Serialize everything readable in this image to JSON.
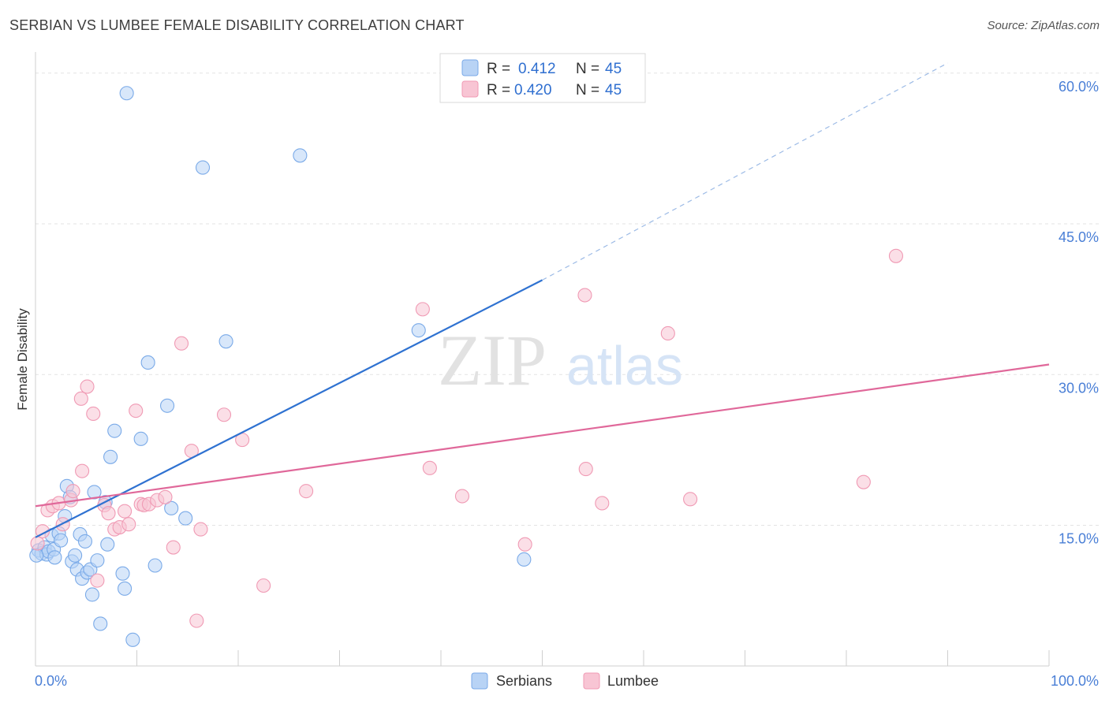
{
  "title": "SERBIAN VS LUMBEE FEMALE DISABILITY CORRELATION CHART",
  "source": "Source: ZipAtlas.com",
  "watermark": {
    "zip": "ZIP",
    "atlas": "atlas"
  },
  "legend_top": [
    {
      "r_label": "R =",
      "r_value": "0.412",
      "n_label": "N =",
      "n_value": "45"
    },
    {
      "r_label": "R =",
      "r_value": "0.420",
      "n_label": "N =",
      "n_value": "45"
    }
  ],
  "colors": {
    "serbians": "#7aaae8",
    "serbians_fill": "#b8d3f5",
    "serbians_line": "#2f72d1",
    "lumbee": "#f09ab4",
    "lumbee_fill": "#f8c5d4",
    "lumbee_line": "#e0689a"
  },
  "chart_data": {
    "type": "scatter",
    "xlabel": "",
    "ylabel": "Female Disability",
    "xlim": [
      0,
      100
    ],
    "ylim": [
      1,
      61
    ],
    "x_tick_labels": [
      "0.0%",
      "100.0%"
    ],
    "y_ticks": [
      15,
      30,
      45,
      60
    ],
    "y_tick_labels": [
      "15.0%",
      "30.0%",
      "45.0%",
      "60.0%"
    ],
    "legend_position": "top-center",
    "series": [
      {
        "name": "Serbians",
        "points": [
          [
            0.3,
            12.5
          ],
          [
            0.6,
            12.2
          ],
          [
            0.9,
            12.8
          ],
          [
            1.1,
            12.1
          ],
          [
            1.3,
            12.4
          ],
          [
            1.6,
            14.0
          ],
          [
            1.8,
            12.6
          ],
          [
            1.9,
            11.8
          ],
          [
            2.3,
            14.2
          ],
          [
            2.5,
            13.5
          ],
          [
            2.9,
            15.9
          ],
          [
            3.1,
            18.9
          ],
          [
            3.4,
            17.8
          ],
          [
            3.6,
            11.4
          ],
          [
            3.9,
            12.0
          ],
          [
            4.1,
            10.6
          ],
          [
            4.4,
            14.1
          ],
          [
            4.6,
            9.7
          ],
          [
            4.9,
            13.4
          ],
          [
            5.1,
            10.3
          ],
          [
            5.4,
            10.6
          ],
          [
            5.6,
            8.1
          ],
          [
            5.8,
            18.3
          ],
          [
            6.1,
            11.5
          ],
          [
            6.4,
            5.2
          ],
          [
            6.9,
            17.3
          ],
          [
            7.1,
            13.1
          ],
          [
            7.4,
            21.8
          ],
          [
            7.8,
            24.4
          ],
          [
            8.6,
            10.2
          ],
          [
            8.8,
            8.7
          ],
          [
            9.0,
            58.0
          ],
          [
            9.6,
            3.6
          ],
          [
            10.4,
            23.6
          ],
          [
            11.1,
            31.2
          ],
          [
            11.8,
            11.0
          ],
          [
            13.0,
            26.9
          ],
          [
            13.4,
            16.7
          ],
          [
            14.8,
            15.7
          ],
          [
            16.5,
            50.6
          ],
          [
            18.8,
            33.3
          ],
          [
            26.1,
            51.8
          ],
          [
            37.8,
            34.4
          ],
          [
            48.2,
            11.6
          ],
          [
            0.1,
            12.0
          ]
        ]
      },
      {
        "name": "Lumbee",
        "points": [
          [
            0.7,
            14.4
          ],
          [
            1.2,
            16.5
          ],
          [
            1.7,
            16.9
          ],
          [
            2.3,
            17.2
          ],
          [
            2.7,
            15.1
          ],
          [
            3.5,
            17.5
          ],
          [
            3.7,
            18.4
          ],
          [
            4.5,
            27.6
          ],
          [
            4.6,
            20.4
          ],
          [
            5.1,
            28.8
          ],
          [
            5.7,
            26.1
          ],
          [
            6.1,
            9.5
          ],
          [
            6.8,
            17.0
          ],
          [
            7.2,
            16.2
          ],
          [
            7.8,
            14.6
          ],
          [
            8.3,
            14.8
          ],
          [
            8.8,
            16.4
          ],
          [
            9.2,
            15.1
          ],
          [
            9.9,
            26.4
          ],
          [
            10.4,
            17.1
          ],
          [
            10.7,
            17.0
          ],
          [
            11.2,
            17.1
          ],
          [
            12.0,
            17.5
          ],
          [
            12.8,
            17.8
          ],
          [
            13.6,
            12.8
          ],
          [
            14.4,
            33.1
          ],
          [
            15.4,
            22.4
          ],
          [
            15.9,
            5.5
          ],
          [
            16.3,
            14.6
          ],
          [
            18.6,
            26.0
          ],
          [
            20.4,
            23.5
          ],
          [
            22.5,
            9.0
          ],
          [
            26.7,
            18.4
          ],
          [
            38.2,
            36.5
          ],
          [
            38.9,
            20.7
          ],
          [
            42.1,
            17.9
          ],
          [
            48.3,
            13.1
          ],
          [
            54.2,
            37.9
          ],
          [
            54.3,
            20.6
          ],
          [
            55.9,
            17.2
          ],
          [
            62.4,
            34.1
          ],
          [
            64.6,
            17.6
          ],
          [
            81.7,
            19.3
          ],
          [
            84.9,
            41.8
          ],
          [
            0.2,
            13.2
          ]
        ]
      }
    ],
    "trend_lines": [
      {
        "series": "Serbians",
        "x": [
          0,
          50
        ],
        "y": [
          13.8,
          39.4
        ],
        "dashed_extension_to": [
          90,
          61
        ]
      },
      {
        "series": "Lumbee",
        "x": [
          0,
          100
        ],
        "y": [
          16.9,
          31.0
        ]
      }
    ]
  },
  "bottom_legend": [
    "Serbians",
    "Lumbee"
  ]
}
